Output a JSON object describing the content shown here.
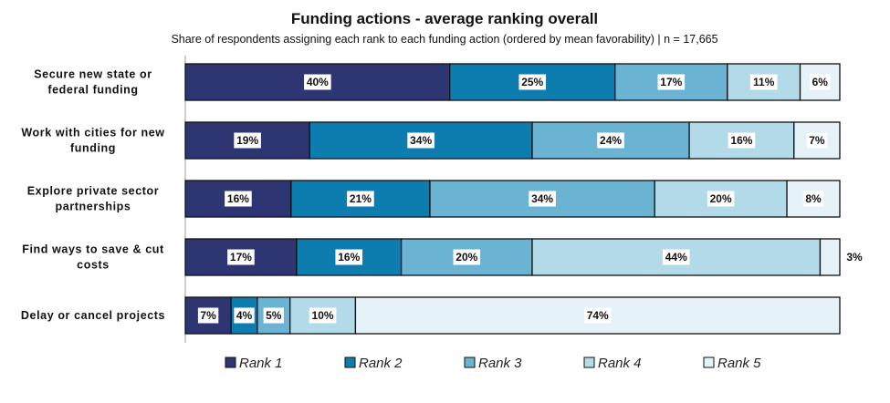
{
  "chart_data": {
    "type": "bar",
    "orientation": "horizontal",
    "stacked": true,
    "percent_stacked": true,
    "title": "Funding actions - average ranking overall",
    "subtitle": "Share of respondents assigning each rank to each funding action (ordered by mean favorability) | n = 17,665",
    "categories": [
      "Secure new state or federal funding",
      "Work with cities for new funding",
      "Explore private sector partnerships",
      "Find ways to save & cut costs",
      "Delay or cancel projects"
    ],
    "series": [
      {
        "name": "Rank 1",
        "color": "#2d3672",
        "values": [
          40,
          19,
          16,
          17,
          7
        ]
      },
      {
        "name": "Rank 2",
        "color": "#0d7db0",
        "values": [
          25,
          34,
          21,
          16,
          4
        ]
      },
      {
        "name": "Rank 3",
        "color": "#6ab3d3",
        "values": [
          17,
          24,
          34,
          20,
          5
        ]
      },
      {
        "name": "Rank 4",
        "color": "#b3dae9",
        "values": [
          11,
          16,
          20,
          44,
          10
        ]
      },
      {
        "name": "Rank 5",
        "color": "#e5f2f8",
        "values": [
          6,
          7,
          8,
          3,
          74
        ]
      }
    ],
    "value_suffix": "%",
    "legend_position": "bottom",
    "grid": false
  }
}
